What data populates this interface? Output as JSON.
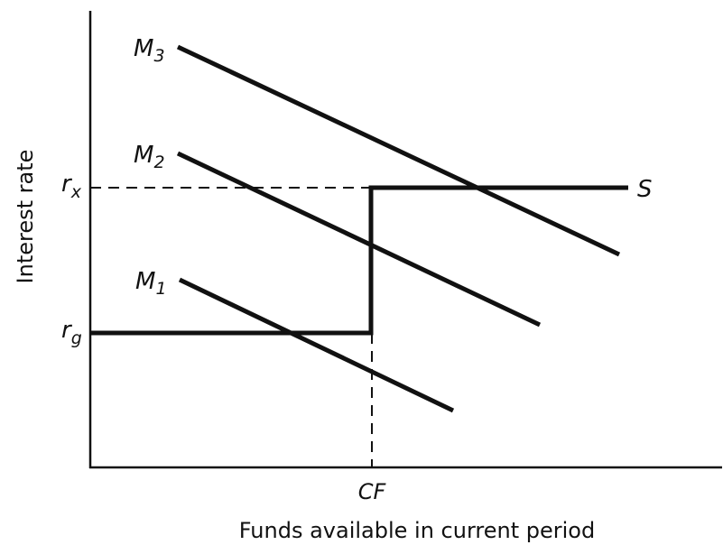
{
  "axes": {
    "y_label": "Interest rate",
    "x_label": "Funds available in current period"
  },
  "levels": [
    {
      "base": "r",
      "sub": "x"
    },
    {
      "base": "r",
      "sub": "g"
    }
  ],
  "x_marker": "CF",
  "supply_label": "S",
  "demand_curves": [
    {
      "base": "M",
      "sub": "1"
    },
    {
      "base": "M",
      "sub": "2"
    },
    {
      "base": "M",
      "sub": "3"
    }
  ]
}
